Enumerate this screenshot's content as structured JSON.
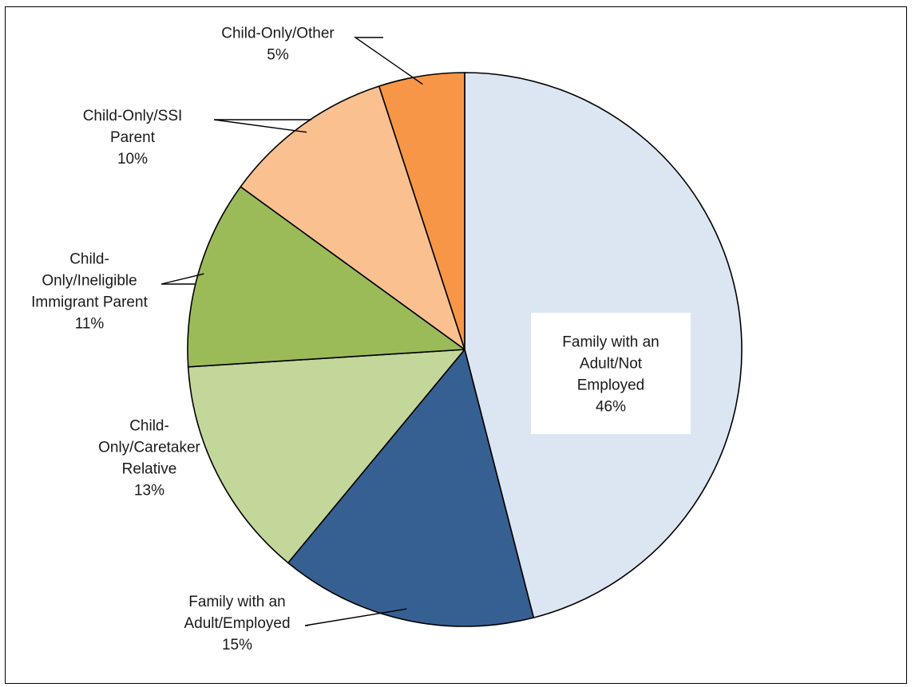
{
  "chart_data": {
    "type": "pie",
    "title": "",
    "slices": [
      {
        "label_lines": [
          "Family with an",
          "Adult/Not",
          "Employed"
        ],
        "percent_label": "46%",
        "value": 46,
        "color": "#dce6f2"
      },
      {
        "label_lines": [
          "Family with an",
          "Adult/Employed"
        ],
        "percent_label": "15%",
        "value": 15,
        "color": "#376092"
      },
      {
        "label_lines": [
          "Child-",
          "Only/Caretaker",
          "Relative"
        ],
        "percent_label": "13%",
        "value": 13,
        "color": "#c4d79b"
      },
      {
        "label_lines": [
          "Child-",
          "Only/Ineligible",
          "Immigrant Parent"
        ],
        "percent_label": "11%",
        "value": 11,
        "color": "#9bbb59"
      },
      {
        "label_lines": [
          "Child-Only/SSI",
          "Parent"
        ],
        "percent_label": "10%",
        "value": 10,
        "color": "#fac090"
      },
      {
        "label_lines": [
          "Child-Only/Other"
        ],
        "percent_label": "5%",
        "value": 5,
        "color": "#f79646"
      }
    ],
    "start": "top",
    "direction": "clockwise"
  }
}
